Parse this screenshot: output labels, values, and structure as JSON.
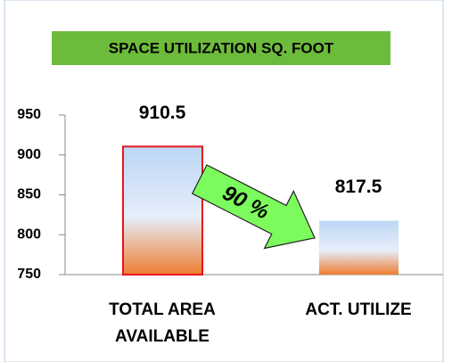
{
  "chart_data": {
    "type": "bar",
    "title": "SPACE UTILIZATION SQ. FOOT",
    "categories": [
      "TOTAL AREA AVAILABLE",
      "ACT. UTILIZE"
    ],
    "values": [
      910.5,
      817.5
    ],
    "color": "#ed7d31",
    "ylim": [
      750,
      950
    ],
    "yticks": [
      750,
      800,
      850,
      900,
      950
    ],
    "annotation": "90 %"
  }
}
